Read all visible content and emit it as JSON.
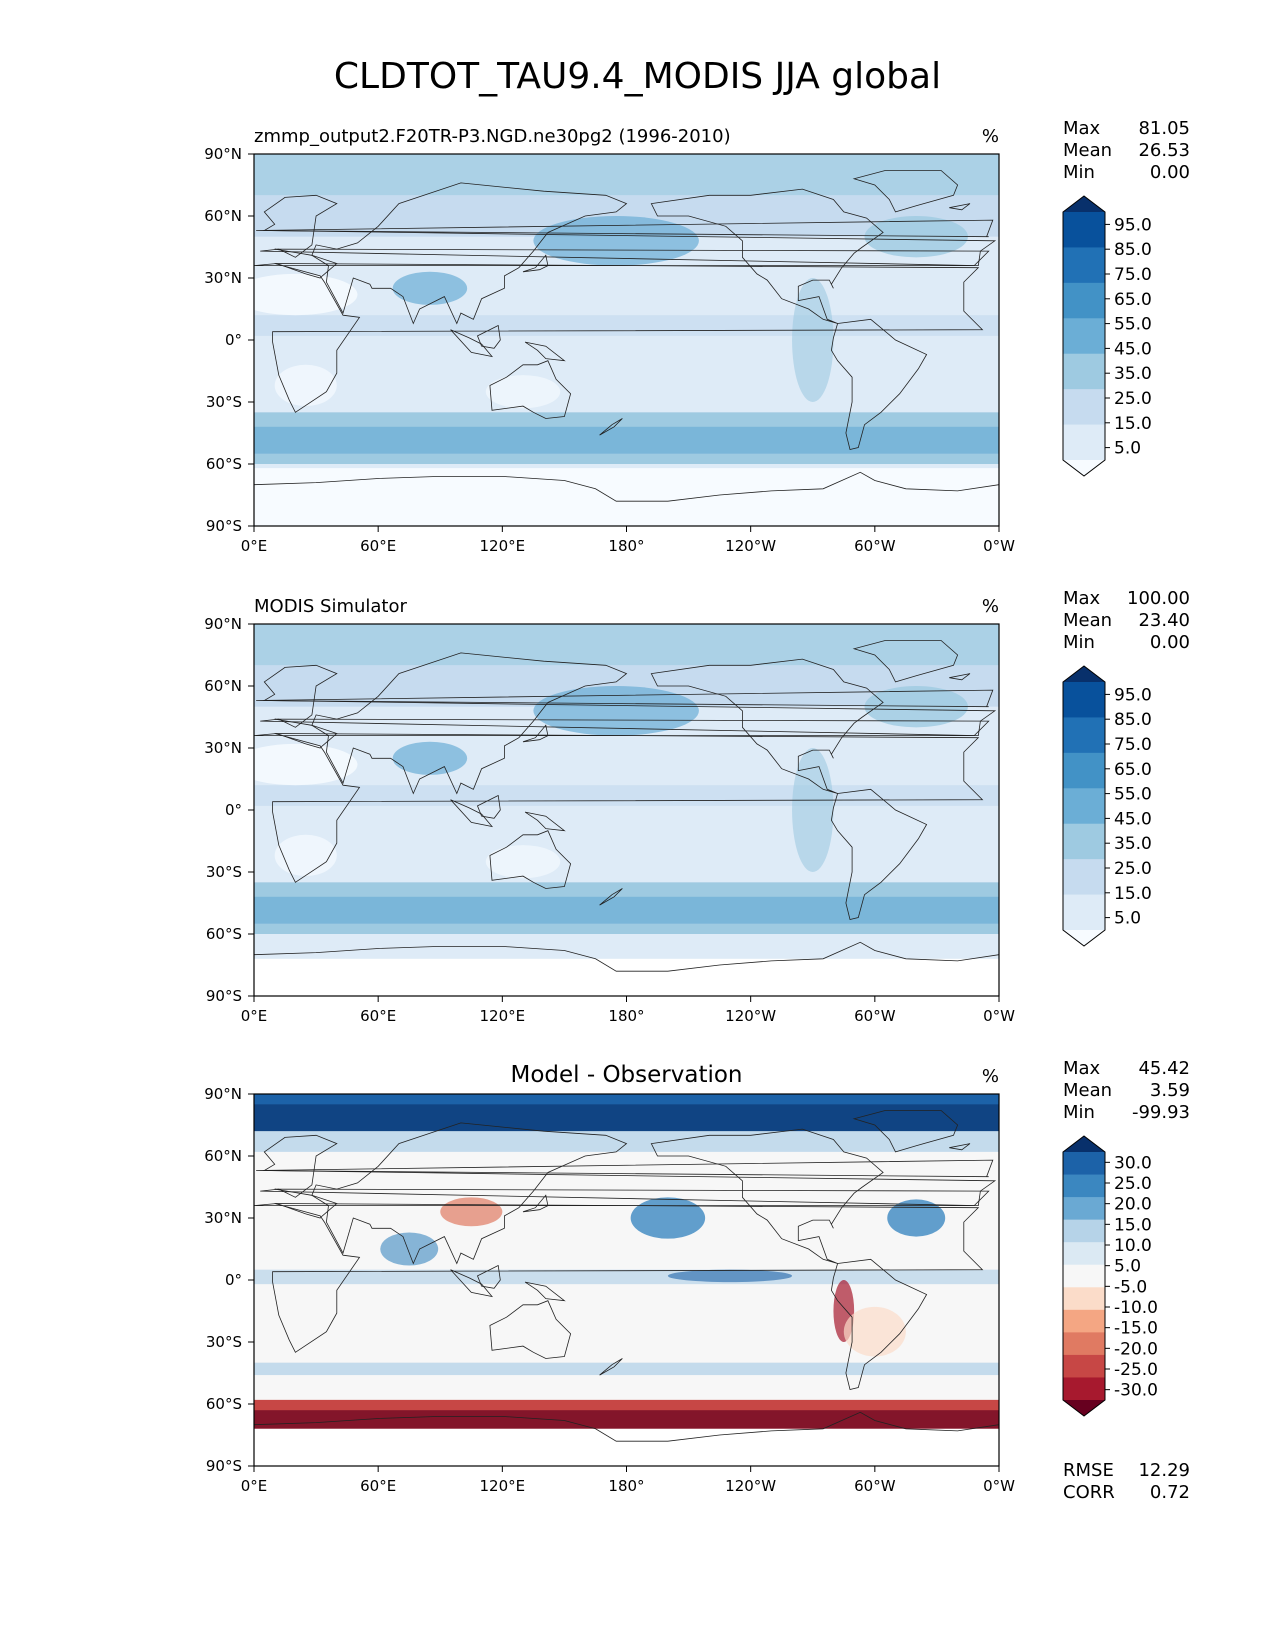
{
  "title": "CLDTOT_TAU9.4_MODIS JJA global",
  "xticks": [
    "0°E",
    "60°E",
    "120°E",
    "180°",
    "120°W",
    "60°W",
    "0°W"
  ],
  "yticks": [
    "90°N",
    "60°N",
    "30°N",
    "0°",
    "30°S",
    "60°S",
    "90°S"
  ],
  "stat_labels": {
    "max": "Max",
    "mean": "Mean",
    "min": "Min",
    "rmse": "RMSE",
    "corr": "CORR"
  },
  "panels": [
    {
      "left_title": "zmmp_output2.F20TR-P3.NGD.ne30pg2 (1996-2010)",
      "center_title": "",
      "units": "%",
      "stats": {
        "max": "81.05",
        "mean": "26.53",
        "min": "0.00"
      },
      "colorbar": {
        "labels": [
          "95.0",
          "85.0",
          "75.0",
          "65.0",
          "55.0",
          "45.0",
          "35.0",
          "25.0",
          "15.0",
          "5.0"
        ],
        "colors": [
          "#08306b",
          "#08519c",
          "#2171b5",
          "#4292c6",
          "#6baed6",
          "#9ecae1",
          "#c6dbef",
          "#deebf7",
          "#f7fbff"
        ]
      }
    },
    {
      "left_title": "MODIS Simulator",
      "center_title": "",
      "units": "%",
      "stats": {
        "max": "100.00",
        "mean": "23.40",
        "min": "0.00"
      },
      "colorbar": {
        "labels": [
          "95.0",
          "85.0",
          "75.0",
          "65.0",
          "55.0",
          "45.0",
          "35.0",
          "25.0",
          "15.0",
          "5.0"
        ],
        "colors": [
          "#08306b",
          "#08519c",
          "#2171b5",
          "#4292c6",
          "#6baed6",
          "#9ecae1",
          "#c6dbef",
          "#deebf7",
          "#f7fbff"
        ]
      }
    },
    {
      "left_title": "",
      "center_title": "Model - Observation",
      "units": "%",
      "stats": {
        "max": "45.42",
        "mean": "3.59",
        "min": "-99.93",
        "rmse": "12.29",
        "corr": "0.72"
      },
      "colorbar": {
        "labels": [
          "30.0",
          "25.0",
          "20.0",
          "15.0",
          "10.0",
          "5.0",
          "-5.0",
          "-10.0",
          "-15.0",
          "-20.0",
          "-25.0",
          "-30.0"
        ],
        "colors": [
          "#08306b",
          "#1c62a8",
          "#3b87c0",
          "#6aa9d3",
          "#b6d3e8",
          "#dbe9f3",
          "#f7f7f7",
          "#fbdcc9",
          "#f4a683",
          "#e07a62",
          "#c74745",
          "#a7192e",
          "#67001f"
        ]
      }
    }
  ],
  "chart_data": {
    "type": "heatmap",
    "title": "CLDTOT_TAU9.4_MODIS JJA global",
    "variable": "CLDTOT_TAU9.4_MODIS",
    "season": "JJA",
    "region": "global",
    "units": "%",
    "x_ticks": [
      "0°E",
      "60°E",
      "120°E",
      "180°",
      "120°W",
      "60°W",
      "0°W"
    ],
    "y_ticks": [
      "90°N",
      "60°N",
      "30°N",
      "0°",
      "30°S",
      "60°S",
      "90°S"
    ],
    "xlim": [
      0,
      360
    ],
    "ylim": [
      -90,
      90
    ],
    "panels": [
      {
        "name": "zmmp_output2.F20TR-P3.NGD.ne30pg2 (1996-2010)",
        "max": 81.05,
        "mean": 26.53,
        "min": 0.0,
        "levels": [
          0,
          5,
          15,
          25,
          35,
          45,
          55,
          65,
          75,
          85,
          95,
          100
        ]
      },
      {
        "name": "MODIS Simulator",
        "max": 100.0,
        "mean": 23.4,
        "min": 0.0,
        "levels": [
          0,
          5,
          15,
          25,
          35,
          45,
          55,
          65,
          75,
          85,
          95,
          100
        ]
      },
      {
        "name": "Model - Observation",
        "max": 45.42,
        "mean": 3.59,
        "min": -99.93,
        "rmse": 12.29,
        "corr": 0.72,
        "levels": [
          -30,
          -25,
          -20,
          -15,
          -10,
          -5,
          5,
          10,
          15,
          20,
          25,
          30
        ]
      }
    ]
  }
}
